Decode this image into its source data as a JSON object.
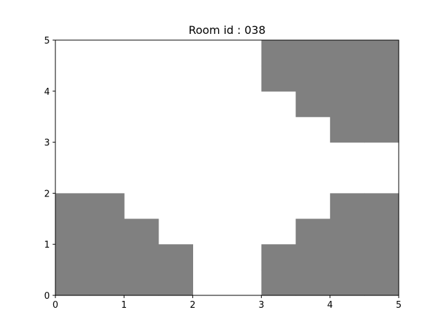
{
  "chart_data": {
    "type": "heatmap",
    "title": "Room id : 038",
    "xlabel": "",
    "ylabel": "",
    "xlim": [
      0,
      5
    ],
    "ylim": [
      0,
      5
    ],
    "xticks": [
      "0",
      "1",
      "2",
      "3",
      "4",
      "5"
    ],
    "yticks": [
      "0",
      "1",
      "2",
      "3",
      "4",
      "5"
    ],
    "grid": false,
    "fill_color": "#808080",
    "background_color": "#ffffff",
    "cell_size": 0.5,
    "grid_cols": 10,
    "grid_rows": 10,
    "cells_filled": [
      [
        0,
        0
      ],
      [
        0,
        1
      ],
      [
        0,
        2
      ],
      [
        0,
        3
      ],
      [
        1,
        0
      ],
      [
        1,
        1
      ],
      [
        1,
        2
      ],
      [
        1,
        3
      ],
      [
        2,
        0
      ],
      [
        2,
        1
      ],
      [
        2,
        2
      ],
      [
        3,
        0
      ],
      [
        3,
        1
      ],
      [
        6,
        0
      ],
      [
        6,
        1
      ],
      [
        7,
        0
      ],
      [
        7,
        1
      ],
      [
        7,
        2
      ],
      [
        8,
        0
      ],
      [
        8,
        1
      ],
      [
        8,
        2
      ],
      [
        8,
        3
      ],
      [
        9,
        0
      ],
      [
        9,
        1
      ],
      [
        9,
        2
      ],
      [
        9,
        3
      ],
      [
        8,
        6
      ],
      [
        8,
        7
      ],
      [
        8,
        8
      ],
      [
        8,
        9
      ],
      [
        9,
        6
      ],
      [
        9,
        7
      ],
      [
        9,
        8
      ],
      [
        9,
        9
      ],
      [
        7,
        7
      ],
      [
        7,
        8
      ],
      [
        7,
        9
      ],
      [
        6,
        8
      ],
      [
        6,
        9
      ]
    ]
  }
}
